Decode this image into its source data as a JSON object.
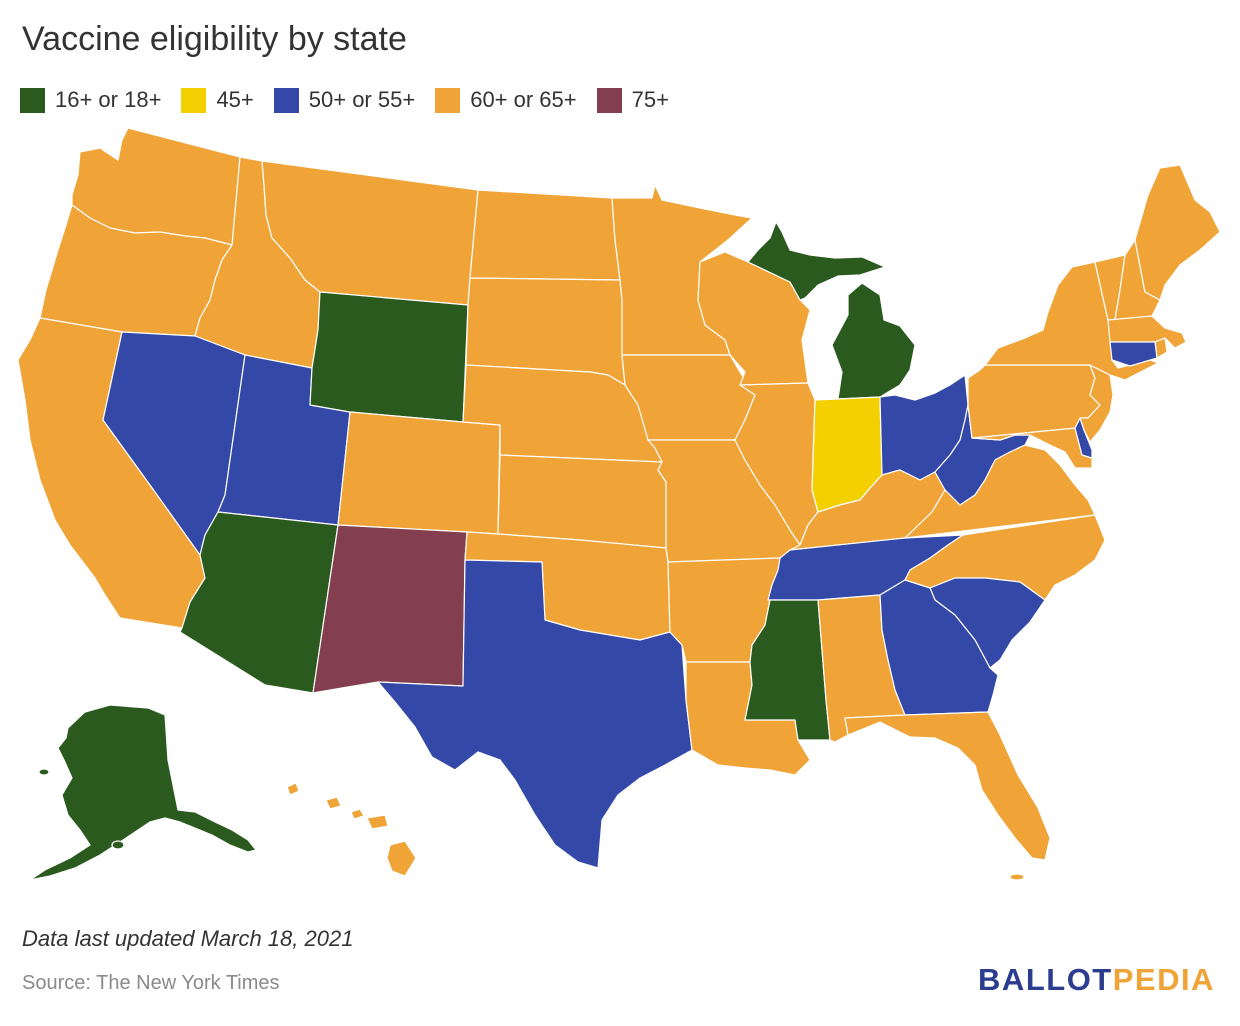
{
  "title": "Vaccine eligibility by state",
  "legend": [
    {
      "label": "16+ or 18+",
      "color": "#2b5a1f"
    },
    {
      "label": "45+",
      "color": "#f5d000"
    },
    {
      "label": "50+ or 55+",
      "color": "#3448a8"
    },
    {
      "label": "60+ or 65+",
      "color": "#f0a336"
    },
    {
      "label": "75+",
      "color": "#833f4f"
    }
  ],
  "state_categories": {
    "WA": 3,
    "OR": 3,
    "CA": 3,
    "ID": 3,
    "NV": 2,
    "UT": 2,
    "AZ": 0,
    "MT": 3,
    "WY": 0,
    "CO": 3,
    "NM": 4,
    "ND": 3,
    "SD": 3,
    "NE": 3,
    "KS": 3,
    "OK": 3,
    "TX": 2,
    "MN": 3,
    "IA": 3,
    "MO": 3,
    "AR": 3,
    "LA": 3,
    "WI": 3,
    "IL": 3,
    "MI": 0,
    "IN": 1,
    "KY": 3,
    "TN": 2,
    "MS": 0,
    "AL": 3,
    "OH": 2,
    "WV": 2,
    "VA": 3,
    "NC": 3,
    "SC": 2,
    "GA": 2,
    "FL": 3,
    "PA": 3,
    "NY": 3,
    "VT": 3,
    "NH": 3,
    "ME": 3,
    "MA": 3,
    "RI": 3,
    "CT": 2,
    "NJ": 3,
    "DE": 2,
    "MD": 3,
    "AK": 0,
    "HI": 3
  },
  "note": "Data last updated March 18, 2021",
  "source": "Source: The New York Times",
  "logo": {
    "part1": "BALLOT",
    "part2": "PEDIA",
    "color1": "#2c3c8e",
    "color2": "#f0a336"
  }
}
